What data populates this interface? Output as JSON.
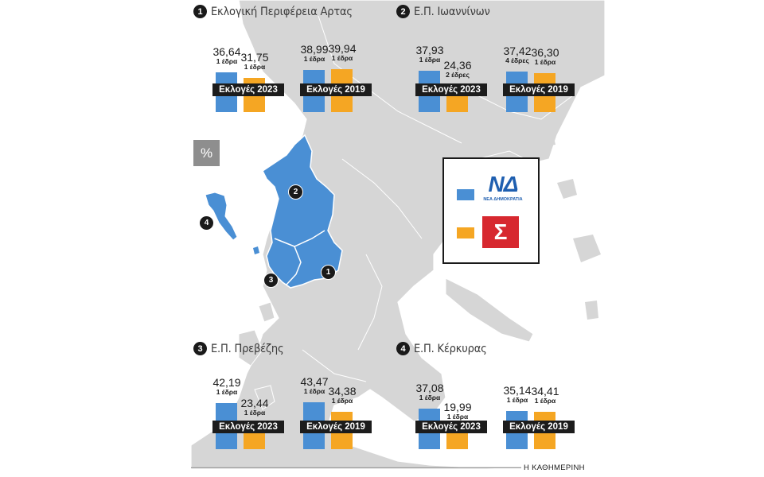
{
  "chart_data": {
    "type": "bar",
    "categories": [
      "Εκλογές 2023",
      "Εκλογές 2019"
    ],
    "legend": [
      "ΝΔ – ΝΕΑ ΔΗΜΟΚΡΑΤΙΑ",
      "ΣΥΡΙΖΑ"
    ],
    "unit_label": "%",
    "colors": {
      "nd": "#4a8fd4",
      "syriza": "#f5a623",
      "highlight": "#4a8fd4",
      "land": "#d6d6d6"
    },
    "ylim": [
      0,
      50
    ],
    "panels": [
      {
        "num": "1",
        "title": "Εκλογική Περιφέρεια Αρτας",
        "groups": [
          {
            "label": "Εκλογές 2023",
            "nd": 36.64,
            "nd_text": "36,64",
            "nd_seats": "1 έδρα",
            "sy": 31.75,
            "sy_text": "31,75",
            "sy_seats": "1 έδρα"
          },
          {
            "label": "Εκλογές 2019",
            "nd": 38.99,
            "nd_text": "38,99",
            "nd_seats": "1 έδρα",
            "sy": 39.94,
            "sy_text": "39,94",
            "sy_seats": "1 έδρα"
          }
        ]
      },
      {
        "num": "2",
        "title": "Ε.Π. Ιωαννίνων",
        "groups": [
          {
            "label": "Εκλογές 2023",
            "nd": 37.93,
            "nd_text": "37,93",
            "nd_seats": "1 έδρα",
            "sy": 24.36,
            "sy_text": "24,36",
            "sy_seats": "2 έδρες"
          },
          {
            "label": "Εκλογές 2019",
            "nd": 37.42,
            "nd_text": "37,42",
            "nd_seats": "4 έδρες",
            "sy": 36.3,
            "sy_text": "36,30",
            "sy_seats": "1 έδρα"
          }
        ]
      },
      {
        "num": "3",
        "title": "Ε.Π. Πρεβέζης",
        "groups": [
          {
            "label": "Εκλογές 2023",
            "nd": 42.19,
            "nd_text": "42,19",
            "nd_seats": "1 έδρα",
            "sy": 23.44,
            "sy_text": "23,44",
            "sy_seats": "1 έδρα"
          },
          {
            "label": "Εκλογές 2019",
            "nd": 43.47,
            "nd_text": "43,47",
            "nd_seats": "1 έδρα",
            "sy": 34.38,
            "sy_text": "34,38",
            "sy_seats": "1 έδρα"
          }
        ]
      },
      {
        "num": "4",
        "title": "Ε.Π. Κέρκυρας",
        "groups": [
          {
            "label": "Εκλογές 2023",
            "nd": 37.08,
            "nd_text": "37,08",
            "nd_seats": "1 έδρα",
            "sy": 19.99,
            "sy_text": "19,99",
            "sy_seats": "1 έδρα"
          },
          {
            "label": "Εκλογές 2019",
            "nd": 35.14,
            "nd_text": "35,14",
            "nd_seats": "1 έδρα",
            "sy": 34.41,
            "sy_text": "34,41",
            "sy_seats": "1 έδρα"
          }
        ]
      }
    ]
  },
  "map": {
    "badges": [
      "1",
      "2",
      "3",
      "4"
    ]
  },
  "legend_box": {
    "nd_logo": "ΝΔ",
    "nd_logo_sub": "ΝΕΑ ΔΗΜΟΚΡΑΤΙΑ",
    "syriza_logo": "Σ"
  },
  "credit": "Η ΚΑΘΗΜΕΡΙΝΗ"
}
